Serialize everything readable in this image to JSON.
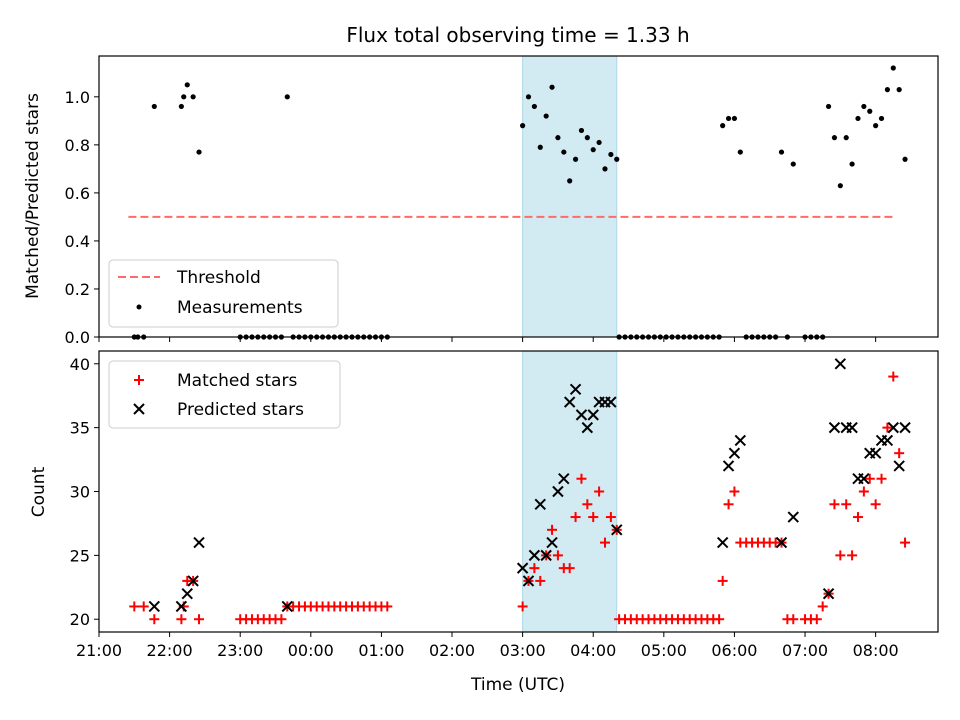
{
  "chart_data": [
    {
      "type": "scatter",
      "title": "Flux total observing time = 1.33 h",
      "ylabel": "Matched/Predicted stars",
      "xlabel": "",
      "xlim": [
        "21:00",
        "08:53"
      ],
      "ylim": [
        0,
        1.17
      ],
      "yticks": [
        "0.0",
        "0.2",
        "0.4",
        "0.6",
        "0.8",
        "1.0"
      ],
      "highlight_span": [
        "03:00",
        "04:20"
      ],
      "highlight_color": "#add8e6",
      "legend_position": "lower-left",
      "legend": [
        "Threshold",
        "Measurements"
      ],
      "threshold": {
        "name": "Threshold",
        "value": 0.5,
        "x_start": "21:25",
        "x_end": "08:15",
        "color": "#ff6b6b"
      },
      "measurements": {
        "name": "Measurements",
        "color": "#000000",
        "points": [
          [
            "21:30",
            0
          ],
          [
            "21:33",
            0
          ],
          [
            "21:38",
            0
          ],
          [
            "21:47",
            0.96
          ],
          [
            "22:10",
            0.96
          ],
          [
            "22:12",
            1.0
          ],
          [
            "22:15",
            1.05
          ],
          [
            "22:20",
            1.0
          ],
          [
            "22:25",
            0.77
          ],
          [
            "23:00",
            0
          ],
          [
            "23:05",
            0
          ],
          [
            "23:10",
            0
          ],
          [
            "23:15",
            0
          ],
          [
            "23:20",
            0
          ],
          [
            "23:25",
            0
          ],
          [
            "23:30",
            0
          ],
          [
            "23:35",
            0
          ],
          [
            "23:40",
            1.0
          ],
          [
            "23:45",
            0
          ],
          [
            "23:50",
            0
          ],
          [
            "23:55",
            0
          ],
          [
            "00:00",
            0
          ],
          [
            "00:05",
            0
          ],
          [
            "00:10",
            0
          ],
          [
            "00:15",
            0
          ],
          [
            "00:20",
            0
          ],
          [
            "00:25",
            0
          ],
          [
            "00:30",
            0
          ],
          [
            "00:35",
            0
          ],
          [
            "00:40",
            0
          ],
          [
            "00:45",
            0
          ],
          [
            "00:50",
            0
          ],
          [
            "00:55",
            0
          ],
          [
            "01:00",
            0
          ],
          [
            "01:05",
            0
          ],
          [
            "03:00",
            0.88
          ],
          [
            "03:05",
            1.0
          ],
          [
            "03:10",
            0.96
          ],
          [
            "03:15",
            0.79
          ],
          [
            "03:20",
            0.92
          ],
          [
            "03:25",
            1.04
          ],
          [
            "03:30",
            0.83
          ],
          [
            "03:35",
            0.77
          ],
          [
            "03:40",
            0.65
          ],
          [
            "03:45",
            0.74
          ],
          [
            "03:50",
            0.86
          ],
          [
            "03:55",
            0.83
          ],
          [
            "04:00",
            0.78
          ],
          [
            "04:05",
            0.81
          ],
          [
            "04:10",
            0.7
          ],
          [
            "04:15",
            0.76
          ],
          [
            "04:20",
            0.74
          ],
          [
            "04:22",
            0
          ],
          [
            "04:27",
            0
          ],
          [
            "04:32",
            0
          ],
          [
            "04:37",
            0
          ],
          [
            "04:42",
            0
          ],
          [
            "04:47",
            0
          ],
          [
            "04:52",
            0
          ],
          [
            "04:57",
            0
          ],
          [
            "05:02",
            0
          ],
          [
            "05:07",
            0
          ],
          [
            "05:12",
            0
          ],
          [
            "05:17",
            0
          ],
          [
            "05:22",
            0
          ],
          [
            "05:27",
            0
          ],
          [
            "05:32",
            0
          ],
          [
            "05:37",
            0
          ],
          [
            "05:42",
            0
          ],
          [
            "05:47",
            0
          ],
          [
            "05:50",
            0.88
          ],
          [
            "05:55",
            0.91
          ],
          [
            "06:00",
            0.91
          ],
          [
            "06:05",
            0.77
          ],
          [
            "06:10",
            0
          ],
          [
            "06:15",
            0
          ],
          [
            "06:20",
            0
          ],
          [
            "06:25",
            0
          ],
          [
            "06:30",
            0
          ],
          [
            "06:35",
            0
          ],
          [
            "06:40",
            0.77
          ],
          [
            "06:45",
            0
          ],
          [
            "06:50",
            0.72
          ],
          [
            "07:00",
            0
          ],
          [
            "07:05",
            0
          ],
          [
            "07:10",
            0
          ],
          [
            "07:15",
            0
          ],
          [
            "07:20",
            0.96
          ],
          [
            "07:25",
            0.83
          ],
          [
            "07:30",
            0.63
          ],
          [
            "07:35",
            0.83
          ],
          [
            "07:40",
            0.72
          ],
          [
            "07:45",
            0.91
          ],
          [
            "07:50",
            0.96
          ],
          [
            "07:55",
            0.94
          ],
          [
            "08:00",
            0.88
          ],
          [
            "08:05",
            0.91
          ],
          [
            "08:10",
            1.03
          ],
          [
            "08:15",
            1.12
          ],
          [
            "08:20",
            1.03
          ],
          [
            "08:25",
            0.74
          ]
        ]
      }
    },
    {
      "type": "scatter",
      "title": "",
      "ylabel": "Count",
      "xlabel": "Time (UTC)",
      "xlim": [
        "21:00",
        "08:53"
      ],
      "ylim": [
        19,
        41
      ],
      "yticks": [
        "20",
        "25",
        "30",
        "35",
        "40"
      ],
      "xticks": [
        "21:00",
        "22:00",
        "23:00",
        "00:00",
        "01:00",
        "02:00",
        "03:00",
        "04:00",
        "05:00",
        "06:00",
        "07:00",
        "08:00"
      ],
      "highlight_span": [
        "03:00",
        "04:20"
      ],
      "highlight_color": "#add8e6",
      "legend_position": "upper-left",
      "legend": [
        "Matched stars",
        "Predicted stars"
      ],
      "series": [
        {
          "name": "Matched stars",
          "marker": "plus",
          "color": "#ff0000",
          "points": [
            [
              "21:30",
              21
            ],
            [
              "21:38",
              21
            ],
            [
              "21:47",
              20
            ],
            [
              "22:10",
              20
            ],
            [
              "22:12",
              21
            ],
            [
              "22:15",
              23
            ],
            [
              "22:20",
              23
            ],
            [
              "22:25",
              20
            ],
            [
              "23:00",
              20
            ],
            [
              "23:05",
              20
            ],
            [
              "23:10",
              20
            ],
            [
              "23:15",
              20
            ],
            [
              "23:20",
              20
            ],
            [
              "23:25",
              20
            ],
            [
              "23:30",
              20
            ],
            [
              "23:35",
              20
            ],
            [
              "23:40",
              21
            ],
            [
              "23:45",
              21
            ],
            [
              "23:50",
              21
            ],
            [
              "23:55",
              21
            ],
            [
              "00:00",
              21
            ],
            [
              "00:05",
              21
            ],
            [
              "00:10",
              21
            ],
            [
              "00:15",
              21
            ],
            [
              "00:20",
              21
            ],
            [
              "00:25",
              21
            ],
            [
              "00:30",
              21
            ],
            [
              "00:35",
              21
            ],
            [
              "00:40",
              21
            ],
            [
              "00:45",
              21
            ],
            [
              "00:50",
              21
            ],
            [
              "00:55",
              21
            ],
            [
              "01:00",
              21
            ],
            [
              "01:05",
              21
            ],
            [
              "03:00",
              21
            ],
            [
              "03:05",
              23
            ],
            [
              "03:10",
              24
            ],
            [
              "03:15",
              23
            ],
            [
              "03:20",
              25
            ],
            [
              "03:25",
              27
            ],
            [
              "03:30",
              25
            ],
            [
              "03:35",
              24
            ],
            [
              "03:40",
              24
            ],
            [
              "03:45",
              28
            ],
            [
              "03:50",
              31
            ],
            [
              "03:55",
              29
            ],
            [
              "04:00",
              28
            ],
            [
              "04:05",
              30
            ],
            [
              "04:10",
              26
            ],
            [
              "04:15",
              28
            ],
            [
              "04:20",
              27
            ],
            [
              "04:22",
              20
            ],
            [
              "04:27",
              20
            ],
            [
              "04:32",
              20
            ],
            [
              "04:37",
              20
            ],
            [
              "04:42",
              20
            ],
            [
              "04:47",
              20
            ],
            [
              "04:52",
              20
            ],
            [
              "04:57",
              20
            ],
            [
              "05:02",
              20
            ],
            [
              "05:07",
              20
            ],
            [
              "05:12",
              20
            ],
            [
              "05:17",
              20
            ],
            [
              "05:22",
              20
            ],
            [
              "05:27",
              20
            ],
            [
              "05:32",
              20
            ],
            [
              "05:37",
              20
            ],
            [
              "05:42",
              20
            ],
            [
              "05:47",
              20
            ],
            [
              "05:50",
              23
            ],
            [
              "05:55",
              29
            ],
            [
              "06:00",
              30
            ],
            [
              "06:05",
              26
            ],
            [
              "06:10",
              26
            ],
            [
              "06:15",
              26
            ],
            [
              "06:20",
              26
            ],
            [
              "06:25",
              26
            ],
            [
              "06:30",
              26
            ],
            [
              "06:35",
              26
            ],
            [
              "06:40",
              26
            ],
            [
              "06:45",
              20
            ],
            [
              "06:50",
              20
            ],
            [
              "07:00",
              20
            ],
            [
              "07:05",
              20
            ],
            [
              "07:10",
              20
            ],
            [
              "07:15",
              21
            ],
            [
              "07:20",
              22
            ],
            [
              "07:25",
              29
            ],
            [
              "07:30",
              25
            ],
            [
              "07:35",
              29
            ],
            [
              "07:40",
              25
            ],
            [
              "07:45",
              28
            ],
            [
              "07:50",
              30
            ],
            [
              "07:55",
              31
            ],
            [
              "08:00",
              29
            ],
            [
              "08:05",
              31
            ],
            [
              "08:10",
              35
            ],
            [
              "08:15",
              39
            ],
            [
              "08:20",
              33
            ],
            [
              "08:25",
              26
            ]
          ]
        },
        {
          "name": "Predicted stars",
          "marker": "x",
          "color": "#000000",
          "points": [
            [
              "21:47",
              21
            ],
            [
              "22:10",
              21
            ],
            [
              "22:15",
              22
            ],
            [
              "22:20",
              23
            ],
            [
              "22:25",
              26
            ],
            [
              "23:40",
              21
            ],
            [
              "03:00",
              24
            ],
            [
              "03:05",
              23
            ],
            [
              "03:10",
              25
            ],
            [
              "03:15",
              29
            ],
            [
              "03:20",
              25
            ],
            [
              "03:25",
              26
            ],
            [
              "03:30",
              30
            ],
            [
              "03:35",
              31
            ],
            [
              "03:40",
              37
            ],
            [
              "03:45",
              38
            ],
            [
              "03:50",
              36
            ],
            [
              "03:55",
              35
            ],
            [
              "04:00",
              36
            ],
            [
              "04:05",
              37
            ],
            [
              "04:10",
              37
            ],
            [
              "04:15",
              37
            ],
            [
              "04:20",
              27
            ],
            [
              "05:50",
              26
            ],
            [
              "05:55",
              32
            ],
            [
              "06:00",
              33
            ],
            [
              "06:05",
              34
            ],
            [
              "06:40",
              26
            ],
            [
              "06:50",
              28
            ],
            [
              "07:20",
              22
            ],
            [
              "07:25",
              35
            ],
            [
              "07:30",
              40
            ],
            [
              "07:35",
              35
            ],
            [
              "07:40",
              35
            ],
            [
              "07:45",
              31
            ],
            [
              "07:50",
              31
            ],
            [
              "07:55",
              33
            ],
            [
              "08:00",
              33
            ],
            [
              "08:05",
              34
            ],
            [
              "08:10",
              34
            ],
            [
              "08:15",
              35
            ],
            [
              "08:20",
              32
            ],
            [
              "08:25",
              35
            ]
          ]
        }
      ]
    }
  ]
}
